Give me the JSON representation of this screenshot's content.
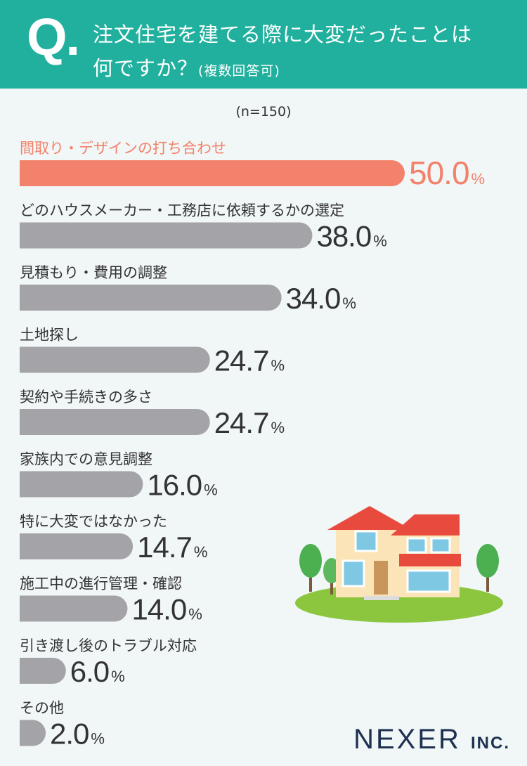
{
  "header": {
    "q_mark": "Q.",
    "line1": "注文住宅を建てる際に大変だったことは",
    "line2": "何ですか？",
    "note": "(複数回答可)"
  },
  "sample_size": "(n=150)",
  "logo": {
    "name": "NEXER",
    "suffix": "INC."
  },
  "colors": {
    "header": "#22b09e",
    "highlight": "#f2826b",
    "bar": "#a3a3a8"
  },
  "chart_data": {
    "type": "bar",
    "orientation": "horizontal",
    "unit": "%",
    "xlim": [
      0,
      50
    ],
    "categories": [
      "間取り・デザインの打ち合わせ",
      "どのハウスメーカー・工務店に依頼するかの選定",
      "見積もり・費用の調整",
      "土地探し",
      "契約や手続きの多さ",
      "家族内での意見調整",
      "特に大変ではなかった",
      "施工中の進行管理・確認",
      "引き渡し後のトラブル対応",
      "その他"
    ],
    "values": [
      50.0,
      38.0,
      34.0,
      24.7,
      24.7,
      16.0,
      14.7,
      14.0,
      6.0,
      2.0
    ],
    "value_labels": [
      "50.0",
      "38.0",
      "34.0",
      "24.7",
      "24.7",
      "16.0",
      "14.7",
      "14.0",
      "6.0",
      "2.0"
    ],
    "highlight_index": 0
  }
}
